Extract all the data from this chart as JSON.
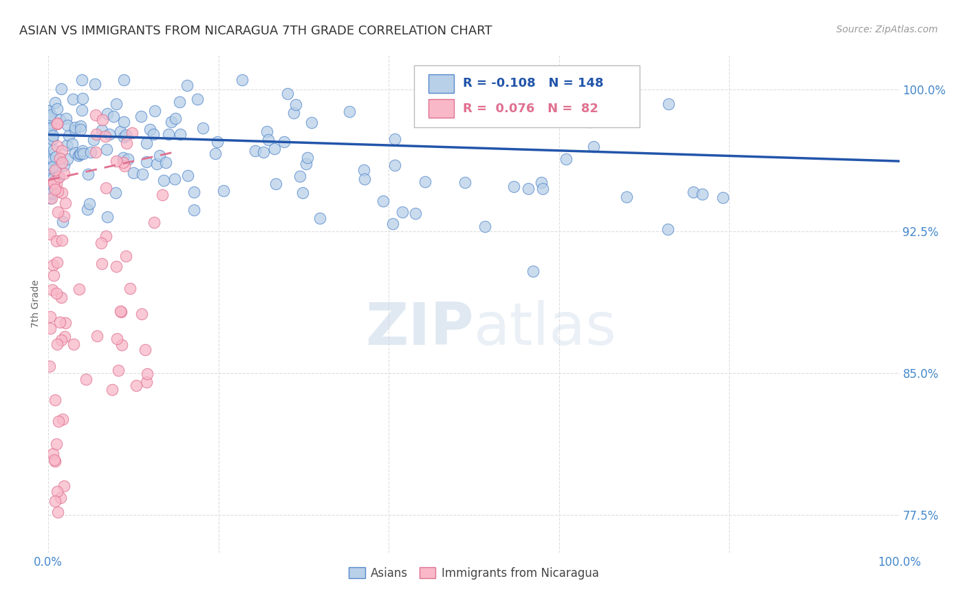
{
  "title": "ASIAN VS IMMIGRANTS FROM NICARAGUA 7TH GRADE CORRELATION CHART",
  "source": "Source: ZipAtlas.com",
  "ylabel": "7th Grade",
  "yticks": [
    0.775,
    0.85,
    0.925,
    1.0
  ],
  "ytick_labels": [
    "77.5%",
    "85.0%",
    "92.5%",
    "100.0%"
  ],
  "xlim": [
    0.0,
    1.0
  ],
  "ylim": [
    0.755,
    1.018
  ],
  "asian_R": -0.108,
  "asian_N": 148,
  "nicaragua_R": 0.076,
  "nicaragua_N": 82,
  "watermark_zip": "ZIP",
  "watermark_atlas": "atlas",
  "asian_color": "#b8d0e8",
  "asian_edge_color": "#5588cc",
  "asian_line_color": "#2255aa",
  "nicaragua_color": "#f8b8c8",
  "nicaragua_edge_color": "#e07090",
  "nicaragua_line_color": "#cc5577",
  "background_color": "#ffffff",
  "grid_color": "#dddddd",
  "title_color": "#333333",
  "axis_tick_color": "#4488cc",
  "legend_bg_color": "#ffffff",
  "legend_border_color": "#cccccc"
}
